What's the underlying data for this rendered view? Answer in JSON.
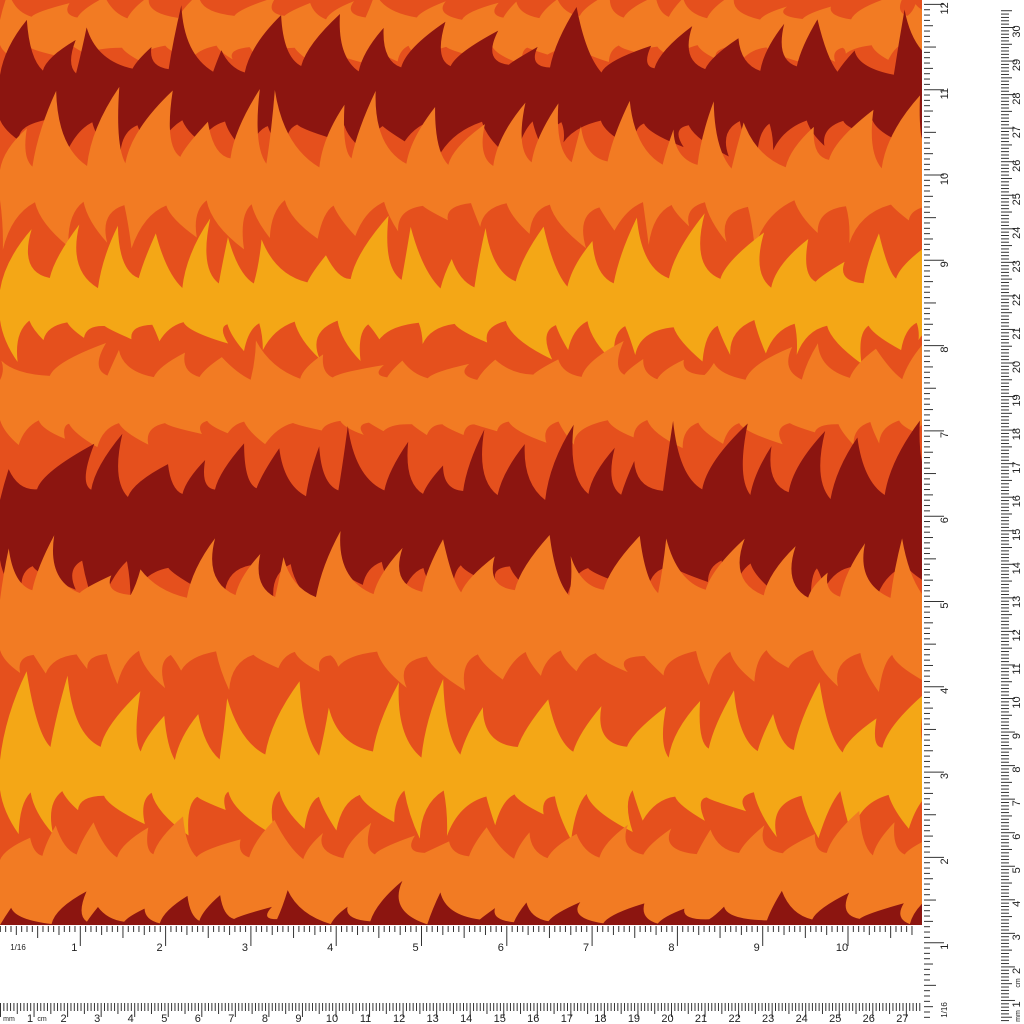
{
  "colors": {
    "base": "#e5501d",
    "orange": "#f27b23",
    "dark_red": "#8c1510",
    "yellow": "#f4a716",
    "red": "#e2431b",
    "ruler_bg": "#ffffff",
    "ruler_ink": "#333333"
  },
  "rulers": {
    "bottom_inch": {
      "fraction_label": "1/16",
      "labels": [
        "1",
        "2",
        "3",
        "4",
        "5",
        "6",
        "7",
        "8",
        "9",
        "10"
      ]
    },
    "bottom_cm": {
      "mm_label": "mm",
      "cm_label": "cm",
      "labels": [
        "1",
        "2",
        "3",
        "4",
        "5",
        "6",
        "7",
        "8",
        "9",
        "10",
        "11",
        "12",
        "13",
        "14",
        "15",
        "16",
        "17",
        "18",
        "19",
        "20",
        "21",
        "22",
        "23",
        "24",
        "25",
        "26",
        "27"
      ]
    },
    "right_inch": {
      "fraction_label": "1/16",
      "labels": [
        "1",
        "2",
        "3",
        "4",
        "5",
        "6",
        "7",
        "8",
        "9",
        "10",
        "11",
        "12"
      ]
    },
    "right_cm": {
      "mm_label": "mm",
      "cm_label": "cm",
      "labels": [
        "1",
        "2",
        "3",
        "4",
        "5",
        "6",
        "7",
        "8",
        "9",
        "10",
        "11",
        "12",
        "13",
        "14",
        "15",
        "16",
        "17",
        "18",
        "19",
        "20",
        "21",
        "22",
        "23",
        "24",
        "25",
        "26",
        "27",
        "28",
        "29",
        "30"
      ]
    }
  }
}
